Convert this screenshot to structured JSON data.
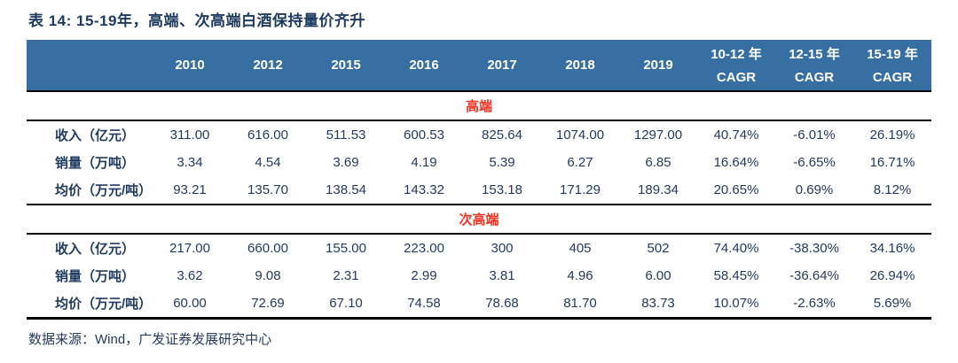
{
  "title": "表 14: 15-19年，高端、次高端白酒保持量价齐升",
  "source": "数据来源：Wind，广发证券发展研究中心",
  "colors": {
    "header_bg": "#376fa3",
    "header_text": "#ffffff",
    "body_text": "#24395e",
    "section_text": "#f0301f",
    "rule_line": "#000000"
  },
  "table": {
    "year_columns": [
      "2010",
      "2012",
      "2015",
      "2016",
      "2017",
      "2018",
      "2019"
    ],
    "cagr_columns": [
      {
        "period": "10-12 年",
        "label": "CAGR"
      },
      {
        "period": "12-15 年",
        "label": "CAGR"
      },
      {
        "period": "15-19 年",
        "label": "CAGR"
      }
    ],
    "sections": [
      {
        "name": "高端",
        "rows": [
          {
            "label": "收入（亿元）",
            "values": [
              "311.00",
              "616.00",
              "511.53",
              "600.53",
              "825.64",
              "1074.00",
              "1297.00",
              "40.74%",
              "-6.01%",
              "26.19%"
            ]
          },
          {
            "label": "销量（万吨）",
            "values": [
              "3.34",
              "4.54",
              "3.69",
              "4.19",
              "5.39",
              "6.27",
              "6.85",
              "16.64%",
              "-6.65%",
              "16.71%"
            ]
          },
          {
            "label": "均价（万元/吨）",
            "values": [
              "93.21",
              "135.70",
              "138.54",
              "143.32",
              "153.18",
              "171.29",
              "189.34",
              "20.65%",
              "0.69%",
              "8.12%"
            ]
          }
        ]
      },
      {
        "name": "次高端",
        "rows": [
          {
            "label": "收入（亿元）",
            "values": [
              "217.00",
              "660.00",
              "155.00",
              "223.00",
              "300",
              "405",
              "502",
              "74.40%",
              "-38.30%",
              "34.16%"
            ]
          },
          {
            "label": "销量（万吨）",
            "values": [
              "3.62",
              "9.08",
              "2.31",
              "2.99",
              "3.81",
              "4.96",
              "6.00",
              "58.45%",
              "-36.64%",
              "26.94%"
            ]
          },
          {
            "label": "均价（万元/吨）",
            "values": [
              "60.00",
              "72.69",
              "67.10",
              "74.58",
              "78.68",
              "81.70",
              "83.73",
              "10.07%",
              "-2.63%",
              "5.69%"
            ]
          }
        ]
      }
    ]
  }
}
